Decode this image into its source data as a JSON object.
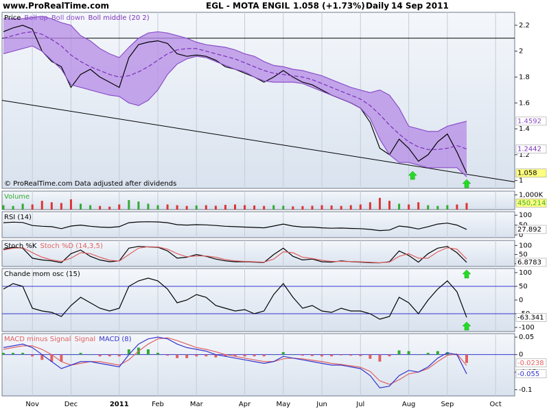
{
  "header": {
    "site": "www.ProRealTime.com",
    "title": "EGL - MOTA ENGIL",
    "quote": "1.058 (+1.73%)",
    "period": "Daily",
    "date": "14 Sep 2011"
  },
  "chart_data": [
    {
      "type": "line",
      "footnote": "© ProRealTime.com Data adjusted after dividends",
      "ylim": [
        0.94,
        2.3
      ],
      "yticks": [
        1,
        1.2,
        1.4,
        1.6,
        1.8,
        2,
        2.2
      ],
      "hlines": [
        2.1
      ],
      "trendline": [
        1.62,
        0.99
      ],
      "band": [
        1,
        2
      ],
      "band_color": "#b58be6",
      "series": [
        {
          "name": "Price",
          "color": "#000000",
          "tag": "#ffff80",
          "values": [
            2.15,
            2.18,
            2.2,
            2.17,
            2.0,
            1.92,
            1.88,
            1.72,
            1.82,
            1.86,
            1.8,
            1.76,
            1.72,
            1.95,
            2.05,
            2.07,
            2.08,
            2.06,
            1.98,
            1.96,
            1.97,
            1.96,
            1.93,
            1.88,
            1.86,
            1.83,
            1.8,
            1.76,
            1.8,
            1.85,
            1.8,
            1.76,
            1.74,
            1.7,
            1.66,
            1.63,
            1.6,
            1.56,
            1.45,
            1.25,
            1.2,
            1.32,
            1.25,
            1.15,
            1.2,
            1.3,
            1.36,
            1.22,
            1.058,
            null,
            null,
            null,
            null
          ]
        },
        {
          "name": "Boll up",
          "color": "#8a4fc8",
          "tag": "#ffffff",
          "values": [
            2.25,
            2.25,
            2.25,
            2.26,
            2.27,
            2.25,
            2.22,
            2.2,
            2.12,
            2.08,
            2.02,
            1.98,
            1.95,
            2.03,
            2.1,
            2.14,
            2.15,
            2.14,
            2.12,
            2.1,
            2.07,
            2.05,
            2.04,
            2.03,
            2.01,
            1.98,
            1.96,
            1.92,
            1.89,
            1.88,
            1.86,
            1.85,
            1.83,
            1.81,
            1.78,
            1.75,
            1.72,
            1.7,
            1.68,
            1.7,
            1.66,
            1.56,
            1.42,
            1.4,
            1.38,
            1.38,
            1.42,
            1.44,
            1.4592,
            null,
            null,
            null,
            null
          ]
        },
        {
          "name": "Boll down",
          "color": "#8a4fc8",
          "values": [
            1.98,
            2.0,
            2.02,
            2.04,
            2.0,
            1.93,
            1.86,
            1.74,
            1.72,
            1.7,
            1.68,
            1.66,
            1.65,
            1.6,
            1.58,
            1.62,
            1.7,
            1.82,
            1.9,
            1.94,
            1.96,
            1.95,
            1.92,
            1.89,
            1.86,
            1.84,
            1.8,
            1.77,
            1.76,
            1.76,
            1.76,
            1.75,
            1.72,
            1.69,
            1.66,
            1.63,
            1.6,
            1.56,
            1.48,
            1.32,
            1.2,
            1.14,
            1.14,
            1.12,
            1.1,
            1.1,
            1.1,
            1.1,
            1.03,
            null,
            null,
            null,
            null
          ]
        },
        {
          "name": "Boll middle (20 2)",
          "color": "#7a2fb8",
          "dash": true,
          "tag": "#ffffff",
          "values": [
            2.1,
            2.12,
            2.14,
            2.15,
            2.13,
            2.09,
            2.04,
            1.97,
            1.92,
            1.88,
            1.85,
            1.82,
            1.8,
            1.81,
            1.84,
            1.88,
            1.93,
            1.98,
            2.01,
            2.02,
            2.02,
            2.0,
            1.98,
            1.96,
            1.94,
            1.91,
            1.88,
            1.85,
            1.83,
            1.82,
            1.81,
            1.8,
            1.78,
            1.75,
            1.72,
            1.69,
            1.66,
            1.63,
            1.58,
            1.51,
            1.43,
            1.36,
            1.3,
            1.26,
            1.24,
            1.24,
            1.25,
            1.27,
            1.2442,
            null,
            null,
            null,
            null
          ]
        }
      ]
    },
    {
      "type": "bar",
      "ylim": [
        0,
        1260000
      ],
      "yticks": [
        {
          "value": 1000000,
          "label": "1,000K"
        }
      ],
      "up_color": "#33aa33",
      "down_color": "#dd3333",
      "series": [
        {
          "name": "Volume",
          "color": "#33aa33",
          "tag": "#ffff80",
          "values": [
            300000,
            250000,
            400000,
            350000,
            600000,
            500000,
            450000,
            700000,
            400000,
            300000,
            250000,
            200000,
            350000,
            650000,
            550000,
            400000,
            300000,
            350000,
            300000,
            250000,
            280000,
            300000,
            260000,
            320000,
            350000,
            300000,
            280000,
            250000,
            300000,
            260000,
            220000,
            240000,
            260000,
            300000,
            280000,
            250000,
            300000,
            350000,
            500000,
            800000,
            600000,
            400000,
            350000,
            500000,
            300000,
            250000,
            300000,
            350000,
            450214,
            null,
            null,
            null,
            null
          ],
          "value_labels": [
            null,
            null,
            null,
            null,
            null,
            null,
            null,
            null,
            null,
            null,
            null,
            null,
            null,
            null,
            null,
            null,
            null,
            null,
            null,
            null,
            null,
            null,
            null,
            null,
            null,
            null,
            null,
            null,
            null,
            null,
            null,
            null,
            null,
            null,
            null,
            null,
            null,
            null,
            null,
            null,
            null,
            null,
            null,
            null,
            null,
            null,
            null,
            null,
            "450,214",
            null,
            null,
            null,
            null
          ]
        }
      ]
    },
    {
      "type": "line",
      "ylim": [
        -14,
        118
      ],
      "yticks": [
        100,
        50,
        0
      ],
      "series": [
        {
          "name": "RSI (14)",
          "color": "#000000",
          "tag": "#ffffff",
          "values": [
            62,
            65,
            63,
            48,
            44,
            42,
            32,
            45,
            50,
            44,
            40,
            38,
            42,
            62,
            66,
            67,
            66,
            62,
            52,
            50,
            52,
            51,
            48,
            44,
            42,
            40,
            38,
            36,
            45,
            55,
            45,
            40,
            40,
            36,
            34,
            35,
            33,
            32,
            28,
            22,
            25,
            45,
            40,
            30,
            42,
            55,
            60,
            50,
            27.892,
            null,
            null,
            null,
            null
          ]
        }
      ]
    },
    {
      "type": "line",
      "ylim": [
        -16,
        128
      ],
      "yticks": [
        100,
        50,
        0
      ],
      "series": [
        {
          "name": "Stoch %K",
          "color": "#000000",
          "tag": "#ffffff",
          "values": [
            80,
            90,
            85,
            30,
            20,
            15,
            5,
            55,
            75,
            40,
            20,
            10,
            15,
            85,
            95,
            92,
            90,
            70,
            30,
            35,
            50,
            40,
            25,
            15,
            10,
            10,
            8,
            6,
            50,
            85,
            40,
            20,
            25,
            10,
            8,
            15,
            10,
            8,
            5,
            4,
            10,
            70,
            45,
            8,
            55,
            85,
            95,
            60,
            6.8783,
            null,
            null,
            null,
            null
          ]
        },
        {
          "name": "Stoch %D (14,3,5)",
          "color": "#e06060",
          "values": [
            75,
            85,
            88,
            60,
            35,
            20,
            12,
            30,
            60,
            55,
            35,
            18,
            14,
            50,
            85,
            93,
            92,
            80,
            55,
            38,
            42,
            42,
            35,
            22,
            15,
            12,
            10,
            8,
            25,
            65,
            60,
            35,
            28,
            18,
            12,
            12,
            11,
            10,
            7,
            5,
            8,
            40,
            55,
            30,
            30,
            65,
            88,
            80,
            25,
            null,
            null,
            null,
            null
          ]
        }
      ]
    },
    {
      "type": "line",
      "ylim": [
        -115,
        115
      ],
      "yticks": [
        100,
        50,
        0,
        -50,
        -100
      ],
      "hlines": [
        50,
        -50
      ],
      "series": [
        {
          "name": "Chande mom osc (15)",
          "color": "#000000",
          "tag": "#ffffff",
          "values": [
            40,
            60,
            50,
            -30,
            -40,
            -45,
            -60,
            -20,
            10,
            -10,
            -30,
            -40,
            -30,
            50,
            70,
            80,
            70,
            40,
            -10,
            0,
            20,
            10,
            -20,
            -30,
            -40,
            -35,
            -50,
            -40,
            20,
            60,
            10,
            -30,
            -20,
            -40,
            -45,
            -30,
            -40,
            -40,
            -50,
            -70,
            -60,
            10,
            -10,
            -50,
            0,
            40,
            70,
            30,
            -63.341,
            null,
            null,
            null,
            null
          ]
        }
      ]
    },
    {
      "type": "line",
      "ylim": [
        -0.118,
        0.06
      ],
      "yticks": [
        0.05,
        0,
        -0.05,
        -0.1
      ],
      "hlines": [
        0
      ],
      "categories": [
        null,
        null,
        null,
        "Nov",
        null,
        null,
        null,
        "Dec",
        null,
        null,
        null,
        null,
        "2011",
        null,
        null,
        null,
        "Feb",
        null,
        null,
        null,
        "Mar",
        null,
        null,
        null,
        null,
        "Apr",
        null,
        null,
        null,
        "May",
        null,
        null,
        null,
        "Jun",
        null,
        null,
        null,
        "Jul",
        null,
        null,
        null,
        null,
        "Aug",
        null,
        null,
        null,
        "Sep",
        null,
        null,
        null,
        null,
        "Oct",
        null
      ],
      "series": [
        {
          "name": "MACD minus Signal",
          "color": "#e06060",
          "kind": "bar",
          "up_color": "#33aa33",
          "tag": "#ffffff",
          "values": [
            0.005,
            0.005,
            0.005,
            -0.005,
            -0.015,
            -0.02,
            -0.02,
            0,
            0.005,
            0,
            -0.005,
            -0.005,
            -0.005,
            0.015,
            0.02,
            0.015,
            0.005,
            -0.003,
            -0.01,
            -0.01,
            -0.005,
            -0.005,
            -0.008,
            -0.005,
            -0.005,
            -0.005,
            -0.005,
            -0.005,
            0,
            0.007,
            0,
            -0.003,
            -0.004,
            -0.005,
            -0.005,
            -0.002,
            -0.003,
            -0.004,
            -0.012,
            -0.02,
            -0.005,
            0.012,
            0.01,
            0,
            0.005,
            0.01,
            0.007,
            -0.002,
            -0.0238,
            null,
            null,
            null,
            null
          ]
        },
        {
          "name": "Signal",
          "color": "#e06060",
          "values": [
            0.015,
            0.02,
            0.025,
            0.025,
            0.015,
            0.0,
            -0.02,
            -0.03,
            -0.025,
            -0.02,
            -0.02,
            -0.025,
            -0.03,
            -0.015,
            0.01,
            0.03,
            0.045,
            0.048,
            0.04,
            0.03,
            0.02,
            0.015,
            0.008,
            0.0,
            -0.005,
            -0.01,
            -0.015,
            -0.02,
            -0.02,
            -0.012,
            -0.01,
            -0.012,
            -0.016,
            -0.02,
            -0.025,
            -0.028,
            -0.032,
            -0.036,
            -0.048,
            -0.075,
            -0.085,
            -0.072,
            -0.055,
            -0.05,
            -0.04,
            -0.02,
            -0.002,
            0.002,
            -0.0312,
            null,
            null,
            null,
            null
          ]
        },
        {
          "name": "MACD (8)",
          "color": "#3333cc",
          "tag": "#ffffff",
          "values": [
            0.02,
            0.025,
            0.03,
            0.02,
            0.0,
            -0.02,
            -0.04,
            -0.03,
            -0.02,
            -0.02,
            -0.025,
            -0.03,
            -0.035,
            0.0,
            0.03,
            0.045,
            0.05,
            0.045,
            0.03,
            0.02,
            0.015,
            0.01,
            0.0,
            -0.005,
            -0.01,
            -0.015,
            -0.02,
            -0.025,
            -0.02,
            -0.005,
            -0.01,
            -0.015,
            -0.02,
            -0.025,
            -0.03,
            -0.03,
            -0.035,
            -0.04,
            -0.06,
            -0.095,
            -0.09,
            -0.06,
            -0.045,
            -0.05,
            -0.035,
            -0.01,
            0.005,
            0.0,
            -0.055,
            null,
            null,
            null,
            null
          ]
        }
      ]
    }
  ]
}
